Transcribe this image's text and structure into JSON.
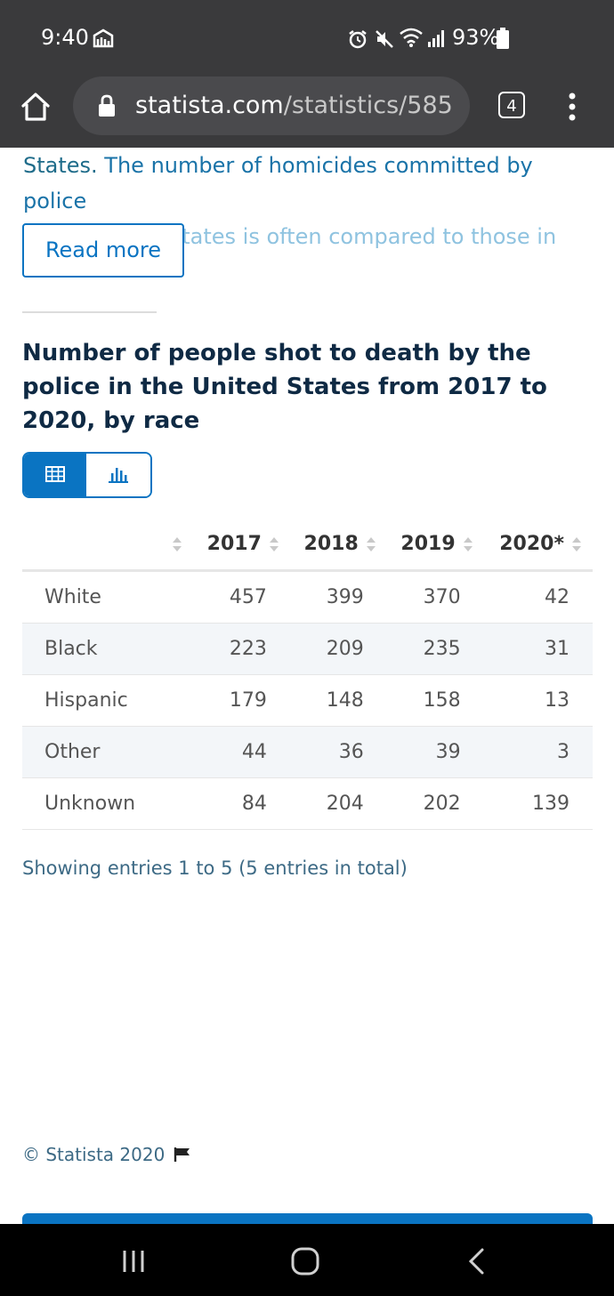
{
  "status_bar": {
    "time": "9:40",
    "battery": "93%",
    "icons": [
      "cast-icon",
      "alarm-icon",
      "mute-icon",
      "wifi-icon",
      "signal-icon",
      "battery-icon"
    ]
  },
  "browser": {
    "url_domain": "statista.com",
    "url_path": "/statistics/585",
    "tab_count": "4"
  },
  "article": {
    "intro_plain": "States. ",
    "intro_link": "The number of homicides committed by police",
    "intro_fade": "in the United States is often compared to those in",
    "read_more": "Read more"
  },
  "chart": {
    "title": "Number of people shot to death by the police in the United States from 2017 to 2020, by race",
    "view_options": [
      "table",
      "chart"
    ],
    "selected_view": "table"
  },
  "table": {
    "headers": [
      "",
      "2017",
      "2018",
      "2019",
      "2020*"
    ],
    "rows": [
      {
        "label": "White",
        "values": [
          "457",
          "399",
          "370",
          "42"
        ]
      },
      {
        "label": "Black",
        "values": [
          "223",
          "209",
          "235",
          "31"
        ]
      },
      {
        "label": "Hispanic",
        "values": [
          "179",
          "148",
          "158",
          "13"
        ]
      },
      {
        "label": "Other",
        "values": [
          "44",
          "36",
          "39",
          "3"
        ]
      },
      {
        "label": "Unknown",
        "values": [
          "84",
          "204",
          "202",
          "139"
        ]
      }
    ],
    "entries_text": "Showing entries 1 to 5 (5 entries in total)"
  },
  "footer": {
    "copyright": "© Statista 2020"
  },
  "colors": {
    "accent": "#0a74c2",
    "title": "#0f2a44",
    "status_bar": "#3a3a3c"
  }
}
